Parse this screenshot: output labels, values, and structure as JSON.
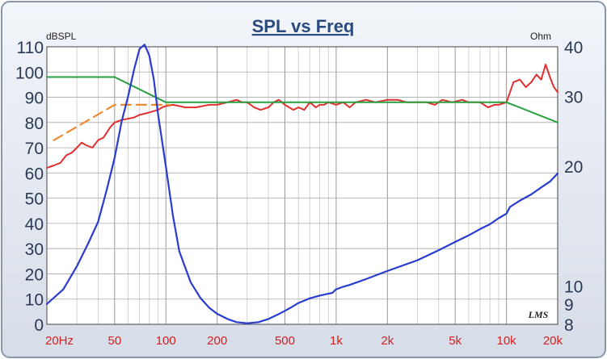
{
  "chart_data": {
    "type": "line",
    "title": "SPL vs Freq",
    "left_axis_label": "dBSPL",
    "right_axis_label": "Ohm",
    "x_scale": "log",
    "x_range": [
      20,
      20000
    ],
    "y_left_range": [
      0,
      110
    ],
    "y_right_scale": "log",
    "y_right_range": [
      8,
      40
    ],
    "x_tick_labels": [
      {
        "value": 20,
        "label": "20Hz"
      },
      {
        "value": 50,
        "label": "50"
      },
      {
        "value": 100,
        "label": "100"
      },
      {
        "value": 200,
        "label": "200"
      },
      {
        "value": 500,
        "label": "500"
      },
      {
        "value": 1000,
        "label": "1k"
      },
      {
        "value": 2000,
        "label": "2k"
      },
      {
        "value": 5000,
        "label": "5k"
      },
      {
        "value": 10000,
        "label": "10k"
      },
      {
        "value": 20000,
        "label": "20k"
      }
    ],
    "y_left_ticks": [
      0,
      10,
      20,
      30,
      40,
      50,
      60,
      70,
      80,
      90,
      100,
      110
    ],
    "y_right_ticks": [
      8,
      9,
      10,
      20,
      30,
      40
    ],
    "watermark": "LMS",
    "grid": true,
    "series": [
      {
        "axis": "left",
        "color": "#e03030",
        "style": "solid",
        "points": [
          [
            20,
            62
          ],
          [
            22,
            63
          ],
          [
            24,
            64
          ],
          [
            26,
            67
          ],
          [
            28,
            68
          ],
          [
            30,
            70
          ],
          [
            32,
            72
          ],
          [
            34,
            71
          ],
          [
            37,
            70
          ],
          [
            40,
            73
          ],
          [
            43,
            74
          ],
          [
            47,
            78
          ],
          [
            50,
            80
          ],
          [
            55,
            81
          ],
          [
            60,
            81.5
          ],
          [
            65,
            82
          ],
          [
            70,
            83
          ],
          [
            75,
            83.5
          ],
          [
            80,
            84
          ],
          [
            85,
            84.5
          ],
          [
            90,
            85
          ],
          [
            95,
            86
          ],
          [
            100,
            86.5
          ],
          [
            110,
            87
          ],
          [
            120,
            86.5
          ],
          [
            130,
            86
          ],
          [
            150,
            86
          ],
          [
            180,
            87
          ],
          [
            200,
            87
          ],
          [
            230,
            88
          ],
          [
            260,
            89
          ],
          [
            280,
            88
          ],
          [
            300,
            88
          ],
          [
            330,
            86
          ],
          [
            360,
            85
          ],
          [
            400,
            86
          ],
          [
            430,
            88
          ],
          [
            460,
            89
          ],
          [
            500,
            87
          ],
          [
            560,
            85
          ],
          [
            600,
            86
          ],
          [
            650,
            85
          ],
          [
            700,
            88
          ],
          [
            760,
            86
          ],
          [
            800,
            87
          ],
          [
            850,
            87
          ],
          [
            900,
            88
          ],
          [
            1000,
            87
          ],
          [
            1100,
            88
          ],
          [
            1200,
            86
          ],
          [
            1300,
            88
          ],
          [
            1500,
            89
          ],
          [
            1700,
            88
          ],
          [
            2000,
            89
          ],
          [
            2300,
            89
          ],
          [
            2600,
            88
          ],
          [
            3000,
            88
          ],
          [
            3400,
            88
          ],
          [
            3800,
            87
          ],
          [
            4200,
            89
          ],
          [
            4800,
            88
          ],
          [
            5500,
            89
          ],
          [
            6000,
            88
          ],
          [
            7000,
            88
          ],
          [
            7800,
            86
          ],
          [
            8500,
            87
          ],
          [
            9000,
            87
          ],
          [
            10000,
            88
          ],
          [
            10500,
            92
          ],
          [
            11000,
            96
          ],
          [
            12000,
            97
          ],
          [
            13000,
            94
          ],
          [
            14000,
            96
          ],
          [
            15000,
            99
          ],
          [
            16000,
            97
          ],
          [
            17000,
            103
          ],
          [
            18000,
            98
          ],
          [
            19000,
            94
          ],
          [
            20000,
            92
          ]
        ]
      },
      {
        "axis": "left",
        "color": "#f08a30",
        "style": "dashed",
        "points": [
          [
            22,
            73
          ],
          [
            50,
            87
          ],
          [
            105,
            87
          ]
        ]
      },
      {
        "axis": "left",
        "color": "#28a040",
        "style": "solid",
        "points": [
          [
            20,
            98
          ],
          [
            50,
            98
          ],
          [
            100,
            88
          ],
          [
            10000,
            88
          ],
          [
            20000,
            80
          ]
        ]
      },
      {
        "axis": "right",
        "color": "#2a3cd0",
        "style": "solid",
        "points": [
          [
            20,
            9.0
          ],
          [
            25,
            9.8
          ],
          [
            30,
            11.2
          ],
          [
            35,
            12.8
          ],
          [
            40,
            14.5
          ],
          [
            45,
            17.5
          ],
          [
            50,
            21
          ],
          [
            55,
            26
          ],
          [
            60,
            30
          ],
          [
            65,
            35
          ],
          [
            70,
            39.5
          ],
          [
            75,
            40.5
          ],
          [
            80,
            38
          ],
          [
            85,
            33
          ],
          [
            90,
            27
          ],
          [
            100,
            20
          ],
          [
            110,
            15
          ],
          [
            120,
            12.2
          ],
          [
            140,
            10.2
          ],
          [
            160,
            9.3
          ],
          [
            180,
            8.8
          ],
          [
            200,
            8.5
          ],
          [
            230,
            8.25
          ],
          [
            260,
            8.1
          ],
          [
            300,
            8.05
          ],
          [
            350,
            8.1
          ],
          [
            400,
            8.25
          ],
          [
            450,
            8.45
          ],
          [
            500,
            8.65
          ],
          [
            550,
            8.85
          ],
          [
            600,
            9.05
          ],
          [
            700,
            9.3
          ],
          [
            800,
            9.45
          ],
          [
            900,
            9.55
          ],
          [
            950,
            9.6
          ],
          [
            1000,
            9.8
          ],
          [
            1100,
            9.95
          ],
          [
            1200,
            10.05
          ],
          [
            1500,
            10.4
          ],
          [
            2000,
            10.9
          ],
          [
            3000,
            11.6
          ],
          [
            4000,
            12.3
          ],
          [
            5000,
            12.9
          ],
          [
            6000,
            13.4
          ],
          [
            7000,
            13.9
          ],
          [
            8000,
            14.3
          ],
          [
            9000,
            14.8
          ],
          [
            10000,
            15.2
          ],
          [
            10500,
            15.8
          ],
          [
            12000,
            16.4
          ],
          [
            14000,
            17.0
          ],
          [
            16000,
            17.7
          ],
          [
            18000,
            18.3
          ],
          [
            20000,
            19.2
          ]
        ]
      }
    ]
  }
}
